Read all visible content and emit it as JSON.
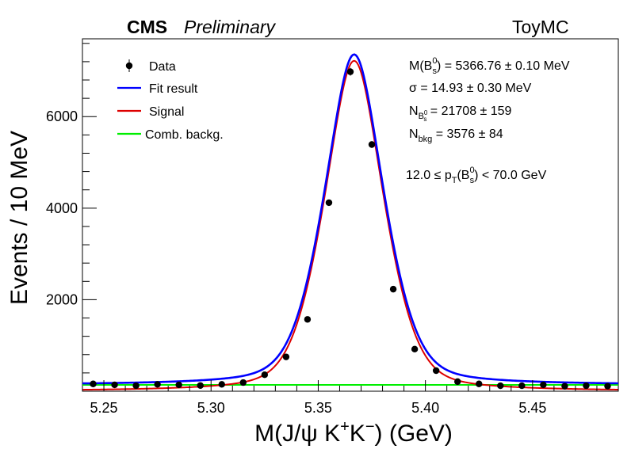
{
  "header": {
    "cms": "CMS",
    "preliminary": "Preliminary",
    "toymc": "ToyMC"
  },
  "axes": {
    "xlabel_main": "M(J/ψ K",
    "xlabel_sup1": "+",
    "xlabel_mid": "K",
    "xlabel_sup2": "−",
    "xlabel_end": ") (GeV)",
    "ylabel": "Events / 10 MeV"
  },
  "legend": {
    "data": "Data",
    "fit": "Fit result",
    "signal": "Signal",
    "bkg": "Comb. backg."
  },
  "info": {
    "mass_a": "M(B",
    "mass_sup": "0",
    "mass_sub": "s",
    "mass_b": ") = 5366.76  ± 0.10 MeV",
    "sigma": "σ = 14.93  ± 0.30 MeV",
    "nsig_a": "N",
    "nsig_sub": "B",
    "nsig_subsup": "0",
    "nsig_subsub": "s",
    "nsig_b": " = 21708  ± 159",
    "nbkg_a": "N",
    "nbkg_sub": "bkg",
    "nbkg_b": " = 3576  ± 84",
    "pt_a": "12.0 ≤ p",
    "pt_sub": "T",
    "pt_b": "(B",
    "pt_sup": "0",
    "pt_sub2": "s",
    "pt_c": ") < 70.0 GeV"
  },
  "colors": {
    "fit": "#0000ff",
    "signal": "#dd0000",
    "bkg": "#00ee00",
    "data": "#000000"
  },
  "chart_data": {
    "type": "scatter",
    "xlim": [
      5.24,
      5.49
    ],
    "ylim": [
      0,
      7700
    ],
    "x_ticks": [
      5.25,
      5.3,
      5.35,
      5.4,
      5.45
    ],
    "x_tick_labels": [
      "5.25",
      "5.30",
      "5.35",
      "5.40",
      "5.45"
    ],
    "y_ticks": [
      2000,
      4000,
      6000
    ],
    "y_tick_labels": [
      "2000",
      "4000",
      "6000"
    ],
    "log_scale": false,
    "grid": false,
    "legend_position": "top-left",
    "data_points": {
      "name": "Data",
      "x": [
        5.245,
        5.255,
        5.265,
        5.275,
        5.285,
        5.295,
        5.305,
        5.315,
        5.325,
        5.335,
        5.345,
        5.355,
        5.365,
        5.375,
        5.385,
        5.395,
        5.405,
        5.415,
        5.425,
        5.435,
        5.445,
        5.455,
        5.465,
        5.475,
        5.485
      ],
      "y": [
        160,
        140,
        120,
        150,
        140,
        125,
        150,
        190,
        360,
        750,
        1570,
        4120,
        6980,
        5390,
        2230,
        920,
        450,
        210,
        160,
        120,
        120,
        140,
        110,
        120,
        110
      ]
    },
    "curves": {
      "mass": 5.36676,
      "sigma": 0.01493,
      "signal_peak": 7220,
      "background_level": 138
    }
  }
}
